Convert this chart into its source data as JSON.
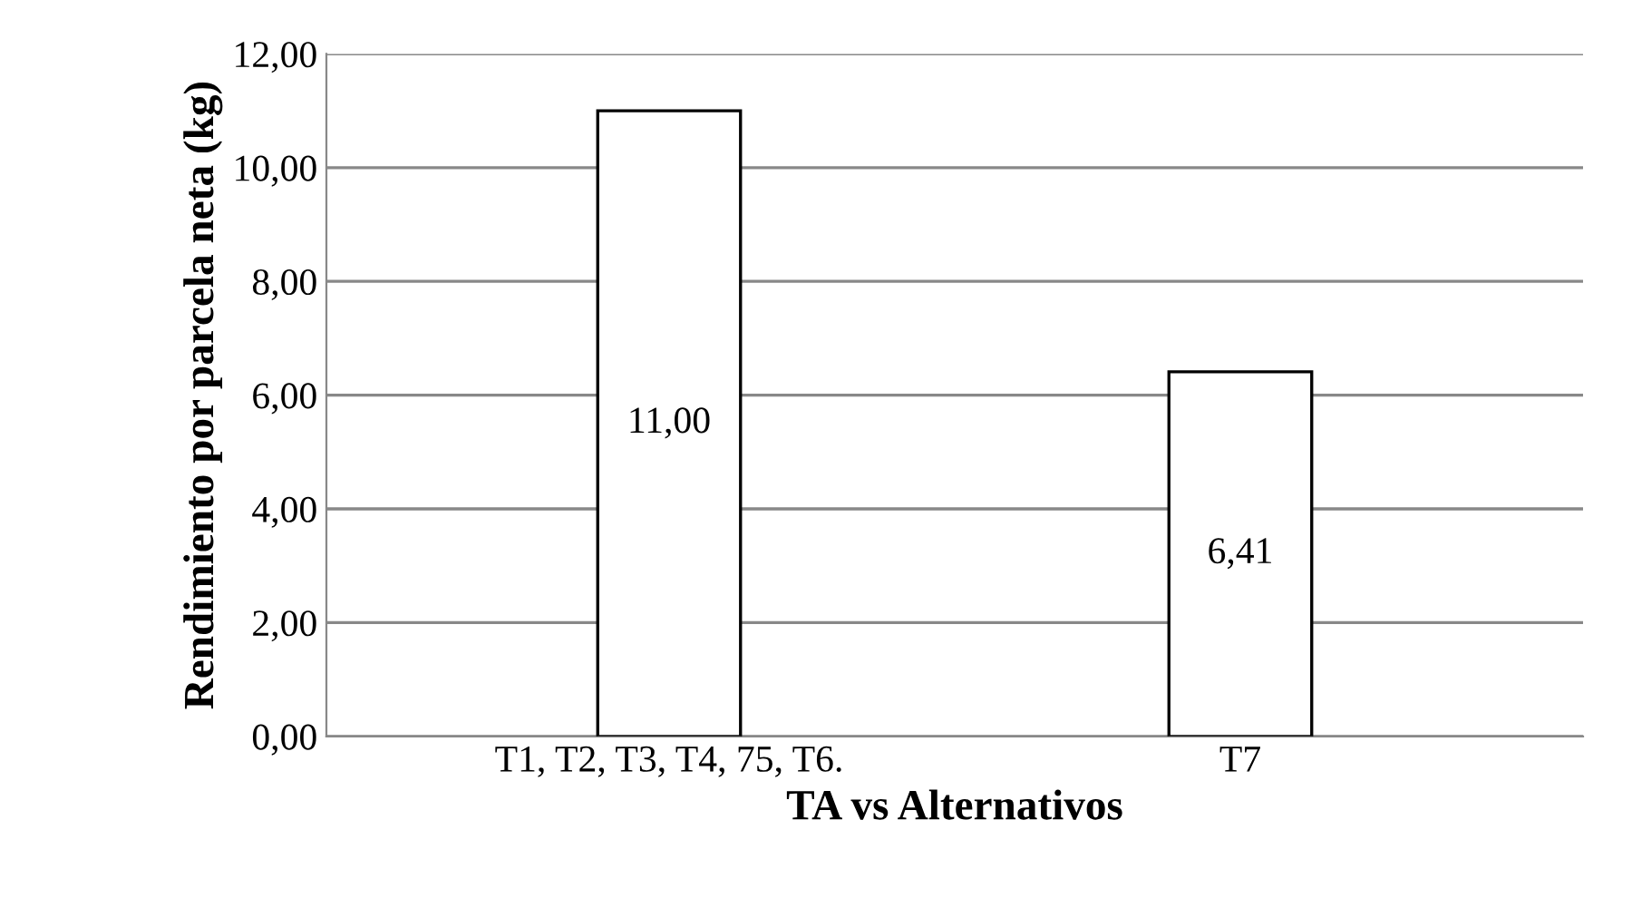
{
  "chart_data": {
    "type": "bar",
    "xlabel": "TA vs Alternativos",
    "ylabel": "Rendimiento por parcela neta (kg)",
    "categories": [
      "T1, T2, T3, T4, 75, T6.",
      "T7"
    ],
    "values": [
      11.0,
      6.41
    ],
    "value_labels": [
      "11,00",
      "6,41"
    ],
    "color": "#ffffff",
    "ylim": [
      0,
      12
    ],
    "yticks": [
      {
        "value": 0,
        "label": "0,00"
      },
      {
        "value": 2,
        "label": "2,00"
      },
      {
        "value": 4,
        "label": "4,00"
      },
      {
        "value": 6,
        "label": "6,00"
      },
      {
        "value": 8,
        "label": "8,00"
      },
      {
        "value": 10,
        "label": "10,00"
      },
      {
        "value": 12,
        "label": "12,00"
      }
    ],
    "grid": "y"
  }
}
